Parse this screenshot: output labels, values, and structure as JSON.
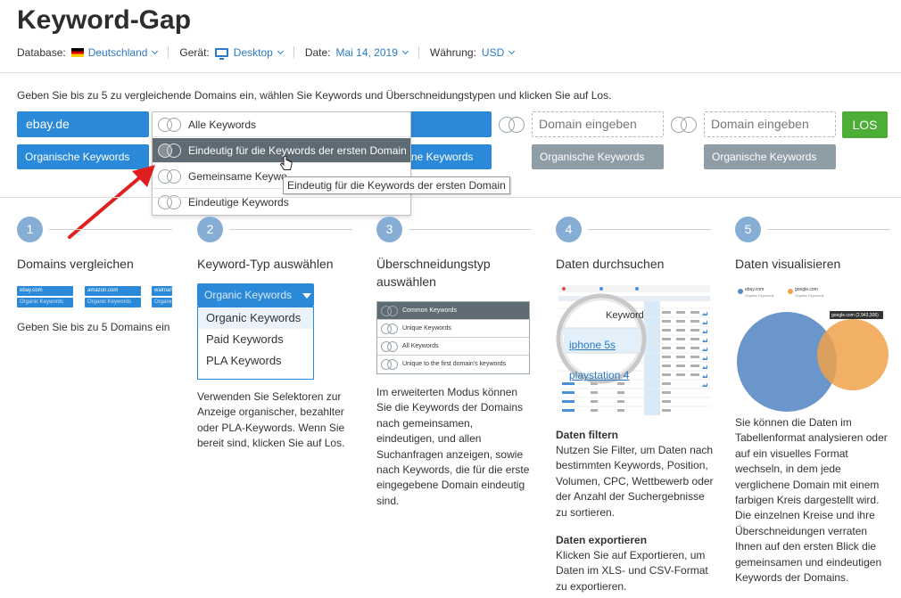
{
  "title": "Keyword-Gap",
  "meta": {
    "database_label": "Database:",
    "database_value": "Deutschland",
    "device_label": "Gerät:",
    "device_value": "Desktop",
    "date_label": "Date:",
    "date_value": "Mai 14, 2019",
    "currency_label": "Währung:",
    "currency_value": "USD"
  },
  "instruction": "Geben Sie bis zu 5 zu vergleichende Domains ein, wählen Sie Keywords und Überschneidungstypen und klicken Sie auf Los.",
  "domains": {
    "first": "ebay.de",
    "placeholder": "Domain eingeben",
    "selector_label": "Organische Keywords",
    "selector_label_partial": "ne Keywords"
  },
  "los_label": "LOS",
  "dropdown": {
    "items": [
      {
        "label": "Alle Keywords"
      },
      {
        "label": "Eindeutig für die Keywords der ersten Domain"
      },
      {
        "label": "Gemeinsame Keywo"
      },
      {
        "label": "Eindeutige Keywords"
      }
    ]
  },
  "tooltip": "Eindeutig für die Keywords der ersten Domain",
  "steps": [
    {
      "num": "1",
      "title": "Domains vergleichen",
      "text": "Geben Sie bis zu 5 Domains ein"
    },
    {
      "num": "2",
      "title": "Keyword-Typ auswählen",
      "text": "Verwenden Sie Selektoren zur Anzeige organischer, bezahlter oder PLA-Keywords. Wenn Sie bereit sind, klicken Sie auf Los."
    },
    {
      "num": "3",
      "title": "Überschneidungstyp auswählen",
      "text": "Im erweiterten Modus können Sie die Keywords der Domains nach gemeinsamen, eindeutigen, und allen Suchanfragen anzeigen, sowie nach Keywords, die für die erste eingegebene Domain eindeutig sind."
    },
    {
      "num": "4",
      "title": "Daten durchsuchen",
      "filter_title": "Daten filtern",
      "filter_text": "Nutzen Sie Filter, um Daten nach bestimmten Keywords, Position, Volumen, CPC, Wettbewerb oder der Anzahl der Suchergebnisse zu sortieren.",
      "export_title": "Daten exportieren",
      "export_text": "Klicken Sie auf Exportieren, um Daten im XLS- und CSV-Format zu exportieren."
    },
    {
      "num": "5",
      "title": "Daten visualisieren",
      "text": "Sie können die Daten im Tabellenformat analysieren oder auf ein visuelles Format wechseln, in dem jede verglichene Domain mit einem farbigen Kreis dargestellt wird. Die einzelnen Kreise und ihre Überschneidungen verraten Ihnen auf den ersten Blick die gemeinsamen und eindeutigen Keywords der Domains."
    }
  ],
  "illustrations": {
    "mini_domains": [
      "ebay.com",
      "amazon.com",
      "walmart.com"
    ],
    "mini_selector": "Organic Keywords",
    "keyword_types": {
      "button": "Organic Keywords",
      "options": [
        "Organic Keywords",
        "Paid Keywords",
        "PLA Keywords"
      ]
    },
    "overlap_types": [
      "Common Keywords",
      "Unique Keywords",
      "All Keywords",
      "Unique to the first domain's keywords"
    ],
    "magnifier": {
      "header": "Keyword",
      "row1": "iphone 5s",
      "row2": "playstation 4"
    },
    "venn": {
      "legend1": "ebay.com",
      "legend2": "google.com",
      "legend_sub": "Organic Keywords",
      "badge": "google.com (2,943,306)",
      "color1": "#5b8bc6",
      "color2": "#eea24a"
    }
  },
  "colors": {
    "blue": "#2a8ad9",
    "gray": "#8f9ea6",
    "green": "#4cae37",
    "step": "#86aed4",
    "arrow": "#e02020"
  }
}
